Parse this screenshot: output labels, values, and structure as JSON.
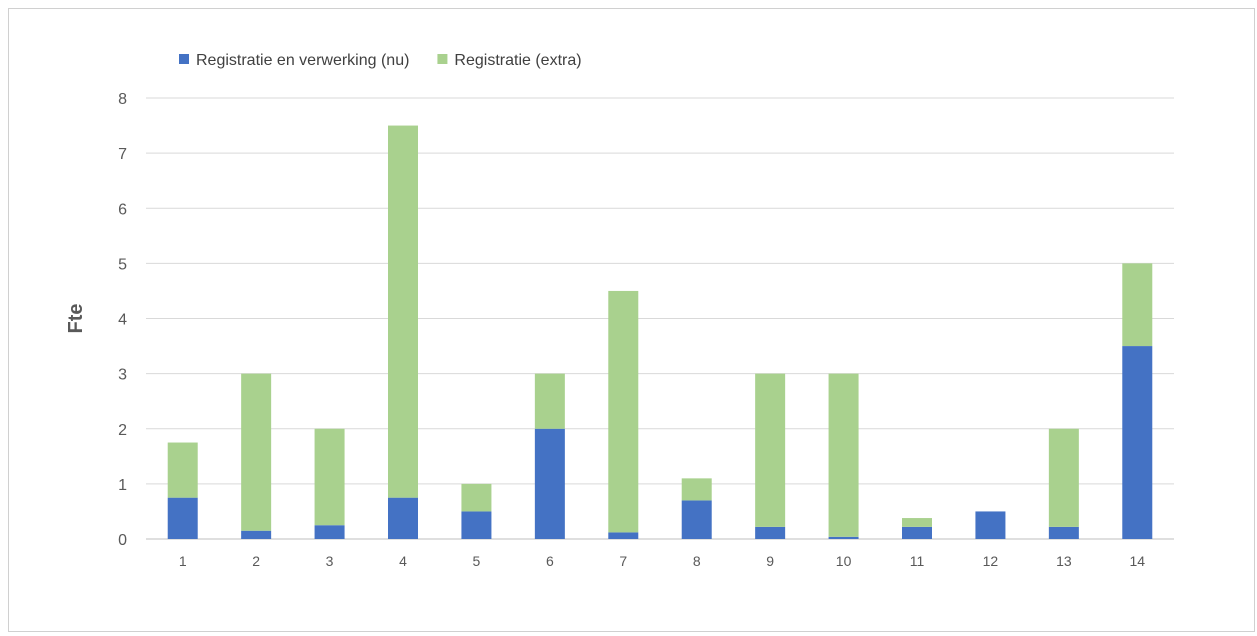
{
  "chart_data": {
    "type": "bar",
    "stacked": true,
    "categories": [
      "1",
      "2",
      "3",
      "4",
      "5",
      "6",
      "7",
      "8",
      "9",
      "10",
      "11",
      "12",
      "13",
      "14"
    ],
    "series": [
      {
        "name": "Registratie en verwerking (nu)",
        "color": "#4472C4",
        "values": [
          0.75,
          0.15,
          0.25,
          0.75,
          0.5,
          2.0,
          0.12,
          0.7,
          0.22,
          0.04,
          0.22,
          0.5,
          0.22,
          3.5
        ]
      },
      {
        "name": "Registratie (extra)",
        "color": "#A9D18E",
        "values": [
          1.0,
          2.85,
          1.75,
          6.75,
          0.5,
          1.0,
          4.38,
          0.4,
          2.78,
          2.96,
          0.16,
          0.0,
          1.78,
          1.5
        ]
      }
    ],
    "title": "",
    "xlabel": "",
    "ylabel": "Fte",
    "ylim": [
      0,
      8
    ],
    "yticks": [
      "0",
      "1",
      "2",
      "3",
      "4",
      "5",
      "6",
      "7",
      "8"
    ],
    "grid": true,
    "legend_position": "top-left"
  }
}
